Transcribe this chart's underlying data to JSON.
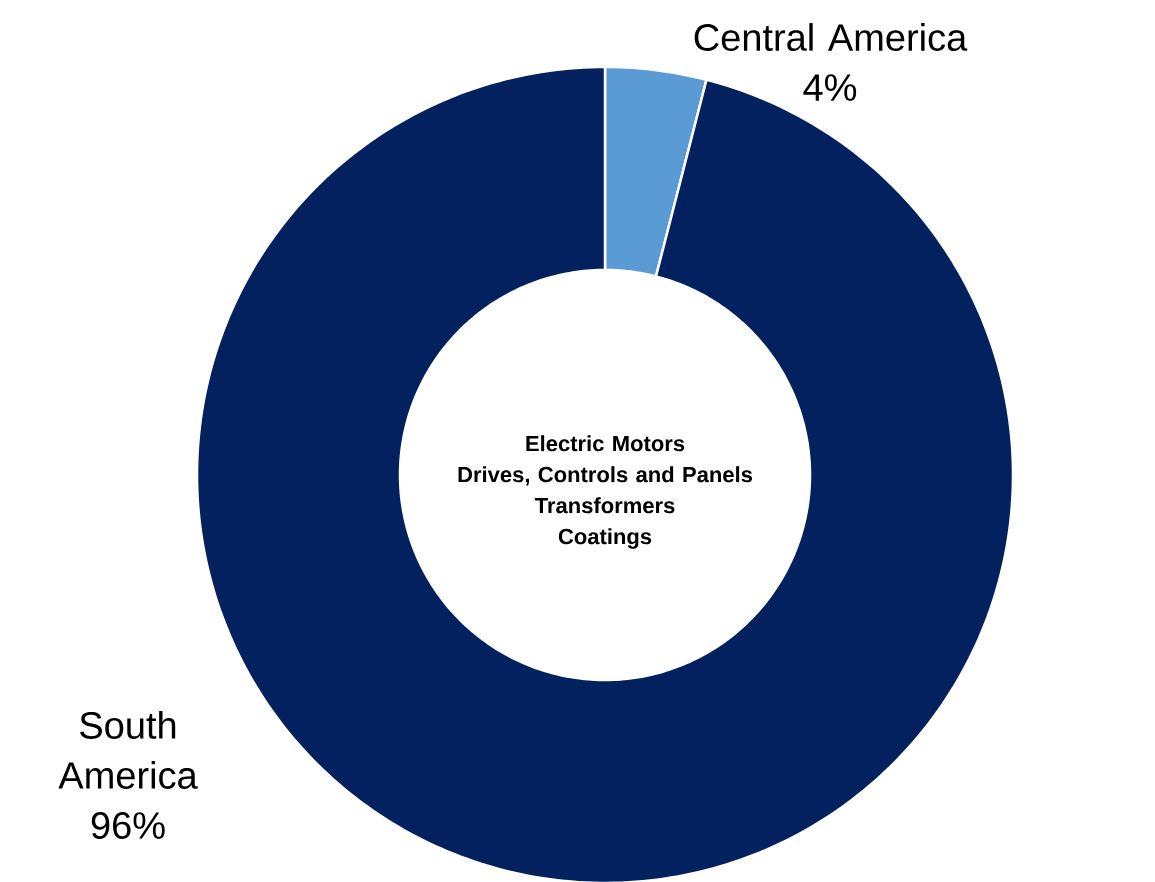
{
  "chart_data": {
    "type": "donut",
    "categories": [
      "Central America",
      "South America"
    ],
    "values": [
      4,
      96
    ],
    "colors": [
      "#5b9bd5",
      "#03215e"
    ],
    "value_labels": [
      "4%",
      "96%"
    ],
    "annotations": [
      "Electric Motors",
      "Drives, Controls and Panels",
      "Transformers",
      "Coatings"
    ]
  }
}
